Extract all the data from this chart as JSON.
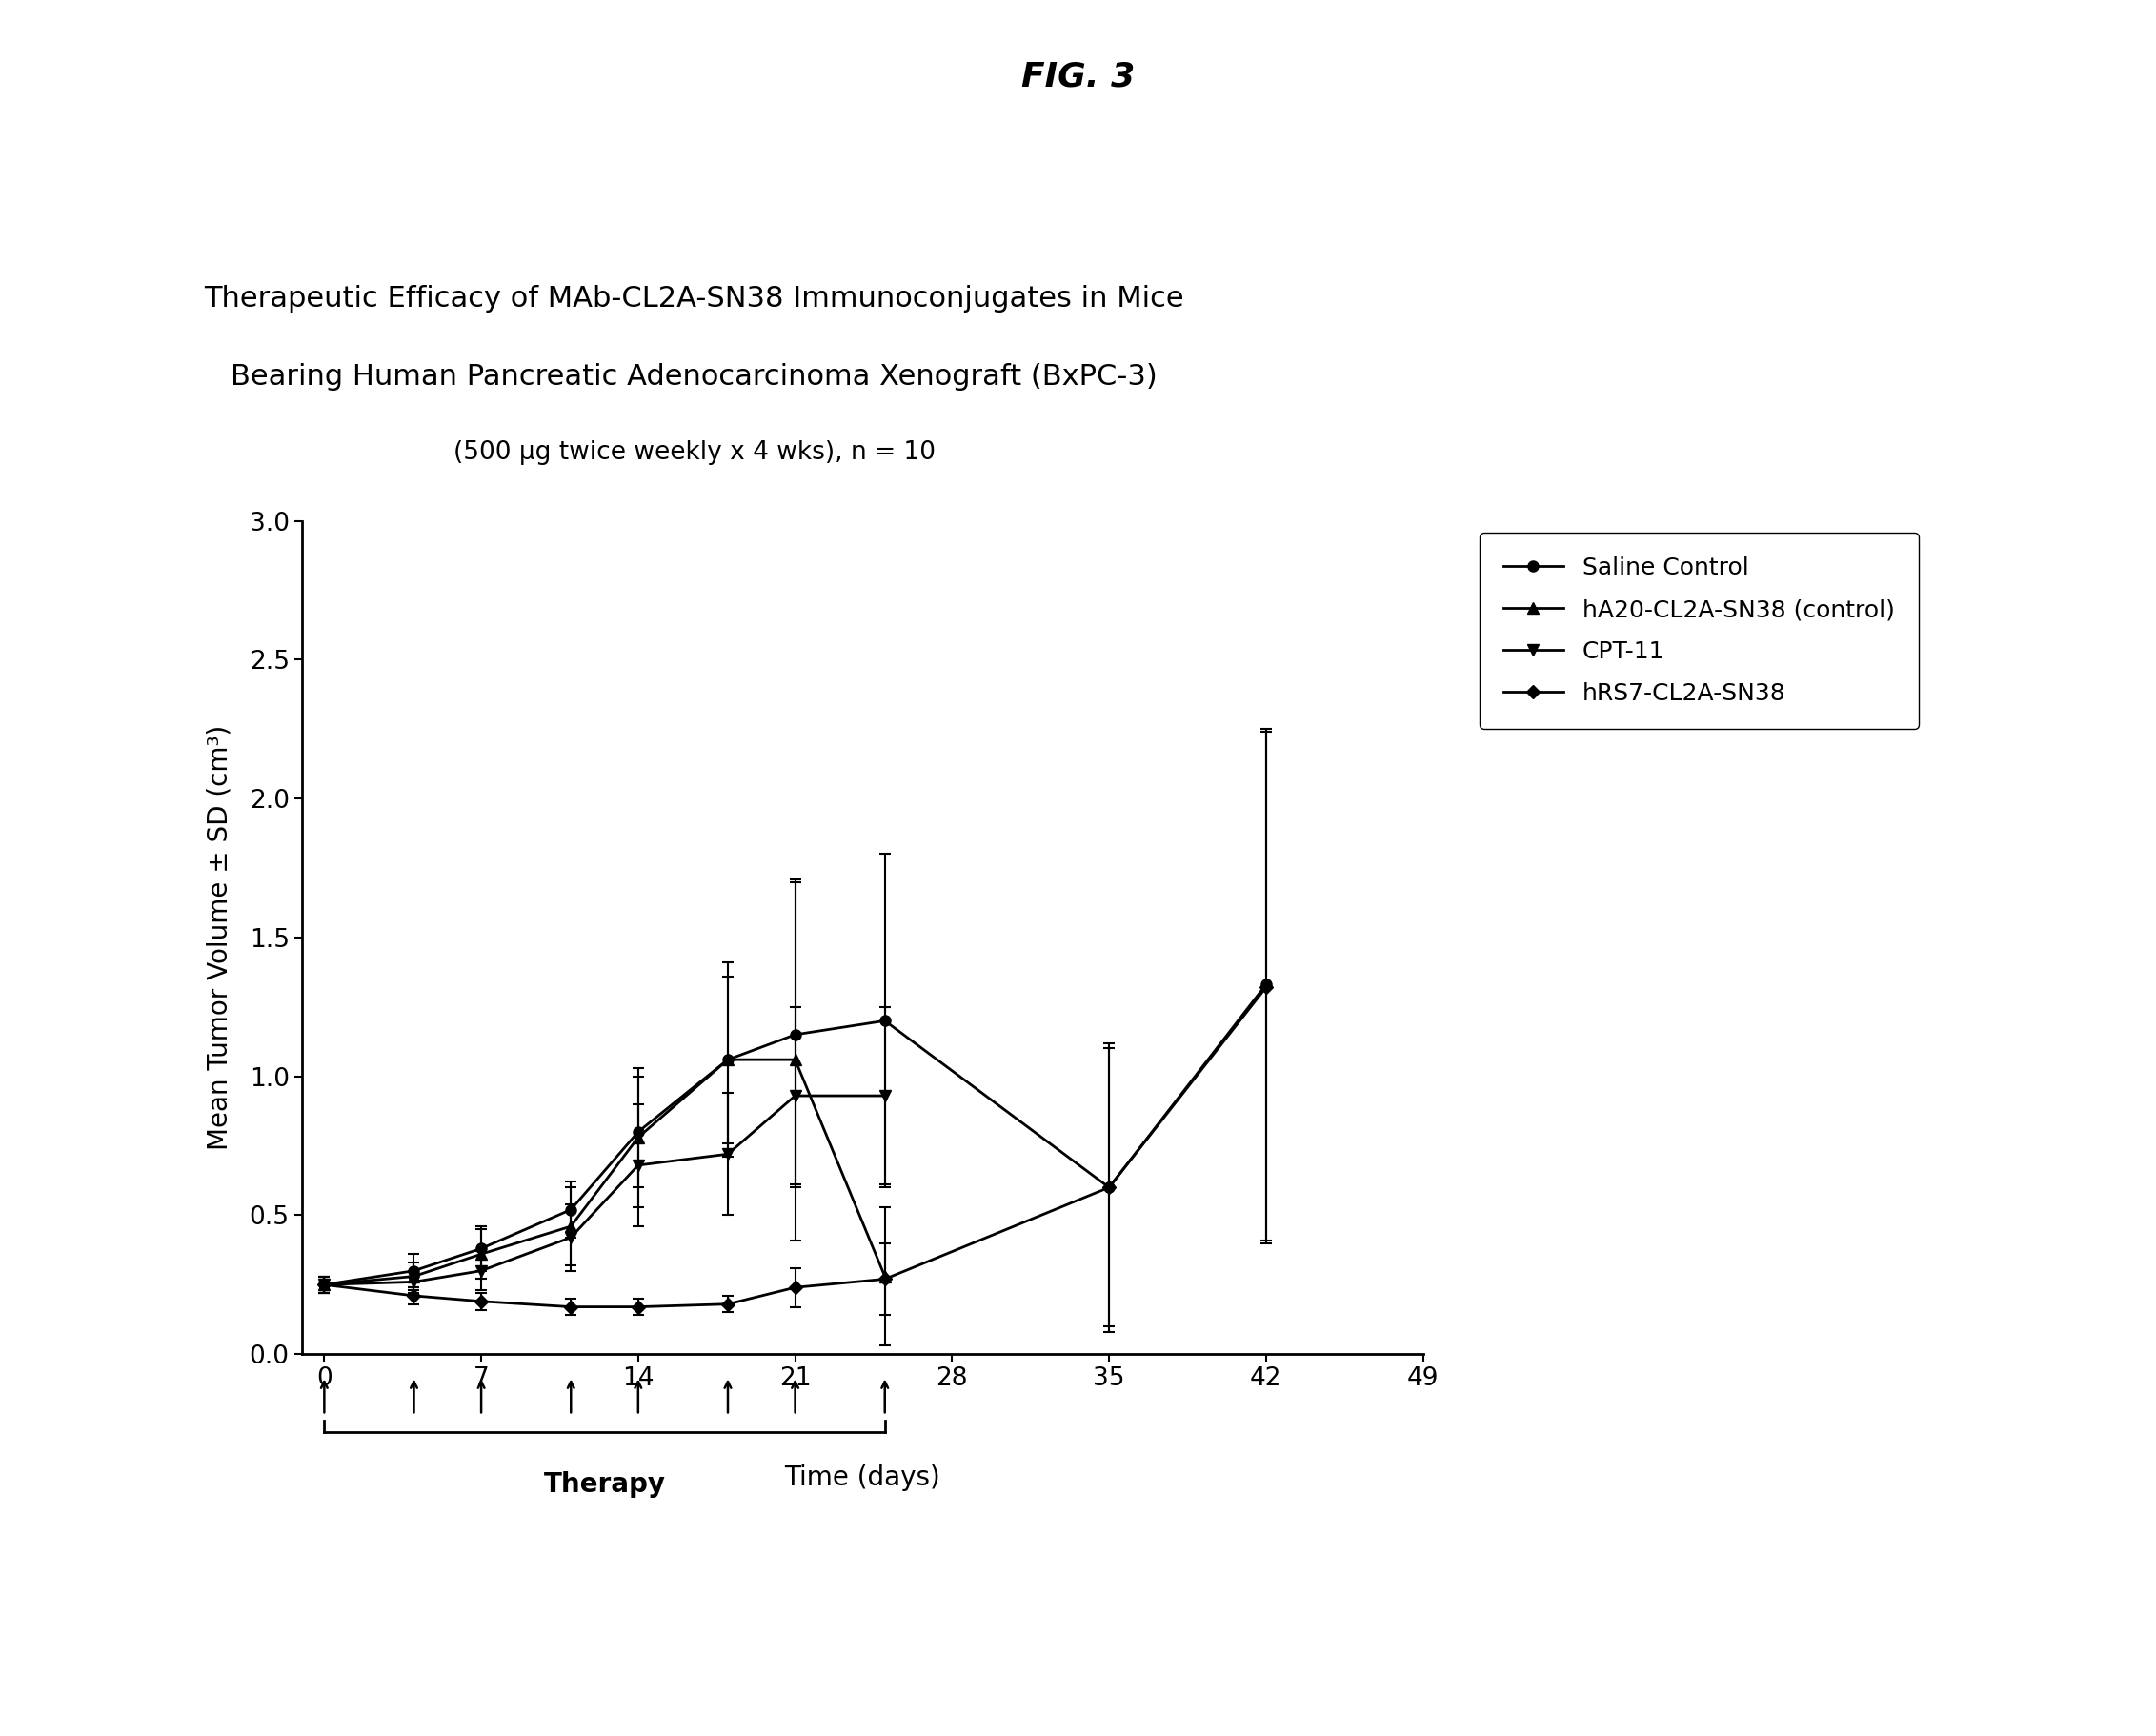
{
  "fig_title": "FIG. 3",
  "chart_title_line1": "Therapeutic Efficacy of MAb-CL2A-SN38 Immunoconjugates in Mice",
  "chart_title_line2": "Bearing Human Pancreatic Adenocarcinoma Xenograft (BxPC-3)",
  "chart_title_line3": "(500 μg twice weekly x 4 wks), n = 10",
  "xlabel": "Time (days)",
  "ylabel": "Mean Tumor Volume ± SD (cm³)",
  "xlim": [
    -1,
    49
  ],
  "ylim": [
    0.0,
    3.0
  ],
  "xticks": [
    0,
    7,
    14,
    21,
    28,
    35,
    42,
    49
  ],
  "ytick_vals": [
    0.0,
    0.5,
    1.0,
    1.5,
    2.0,
    2.5,
    3.0
  ],
  "ytick_labels": [
    "0.0",
    "0.5",
    "1.0",
    "1.5",
    "2.0",
    "2.5",
    "3.0"
  ],
  "series": [
    {
      "label": "Saline Control",
      "x": [
        0,
        4,
        7,
        11,
        14,
        18,
        21,
        25,
        35,
        42
      ],
      "y": [
        0.25,
        0.3,
        0.38,
        0.52,
        0.8,
        1.06,
        1.15,
        1.2,
        0.6,
        1.33
      ],
      "yerr": [
        0.03,
        0.06,
        0.08,
        0.1,
        0.2,
        0.3,
        0.55,
        0.6,
        0.52,
        0.92
      ],
      "marker": "o",
      "markersize": 8,
      "color": "#000000",
      "linewidth": 2.0
    },
    {
      "label": "hA20-CL2A-SN38 (control)",
      "x": [
        0,
        4,
        7,
        11,
        14,
        18,
        21,
        25
      ],
      "y": [
        0.25,
        0.28,
        0.36,
        0.46,
        0.78,
        1.06,
        1.06,
        0.28
      ],
      "yerr": [
        0.03,
        0.05,
        0.09,
        0.14,
        0.25,
        0.35,
        0.65,
        0.25
      ],
      "marker": "^",
      "markersize": 8,
      "color": "#000000",
      "linewidth": 2.0
    },
    {
      "label": "CPT-11",
      "x": [
        0,
        4,
        7,
        11,
        14,
        18,
        21,
        25
      ],
      "y": [
        0.25,
        0.26,
        0.3,
        0.42,
        0.68,
        0.72,
        0.93,
        0.93
      ],
      "yerr": [
        0.03,
        0.04,
        0.07,
        0.12,
        0.22,
        0.22,
        0.32,
        0.32
      ],
      "marker": "v",
      "markersize": 8,
      "color": "#000000",
      "linewidth": 2.0
    },
    {
      "label": "hRS7-CL2A-SN38",
      "x": [
        0,
        4,
        7,
        11,
        14,
        18,
        21,
        25,
        35,
        42
      ],
      "y": [
        0.25,
        0.21,
        0.19,
        0.17,
        0.17,
        0.18,
        0.24,
        0.27,
        0.6,
        1.32
      ],
      "yerr": [
        0.03,
        0.03,
        0.03,
        0.03,
        0.03,
        0.03,
        0.07,
        0.13,
        0.5,
        0.92
      ],
      "marker": "D",
      "markersize": 7,
      "color": "#000000",
      "linewidth": 2.0
    }
  ],
  "therapy_arrows_x": [
    0,
    4,
    7,
    11,
    14,
    18,
    21,
    25
  ],
  "therapy_bracket_start": 0,
  "therapy_bracket_end": 25,
  "therapy_label": "Therapy",
  "background_color": "#ffffff",
  "fig_title_fontsize": 26,
  "chart_title_fontsize1": 22,
  "chart_title_fontsize2": 22,
  "chart_title_fontsize3": 19,
  "axis_label_fontsize": 20,
  "tick_fontsize": 19,
  "legend_fontsize": 18
}
